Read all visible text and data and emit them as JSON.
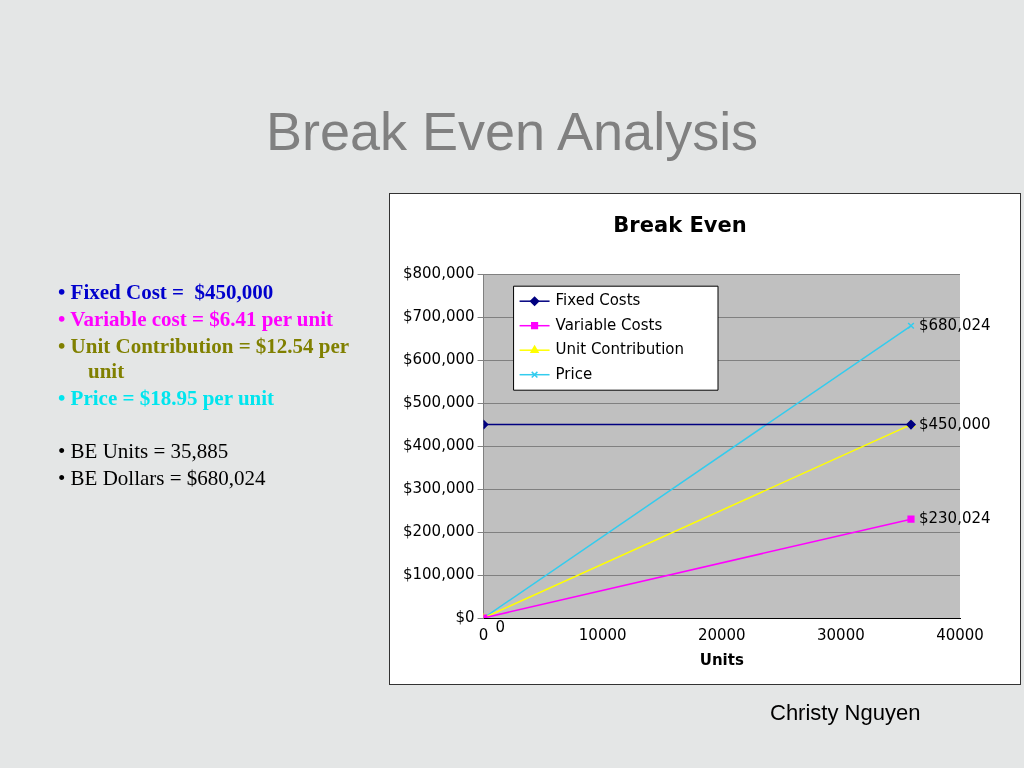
{
  "chart_data": {
    "type": "line",
    "title": "Break Even Analysis",
    "subtitle": "Break Even",
    "xlabel": "Units",
    "x": [
      0,
      35885
    ],
    "series": [
      {
        "name": "Fixed Costs",
        "color": "#000080",
        "marker": "diamond",
        "values": [
          450000,
          450000
        ]
      },
      {
        "name": "Variable Costs",
        "color": "#ff00ff",
        "marker": "square",
        "values": [
          0,
          230024
        ],
        "value_labels": [
          null,
          "$230,024"
        ]
      },
      {
        "name": "Unit Contribution",
        "color": "#ffff00",
        "marker": "triangle",
        "values": [
          0,
          450000
        ],
        "value_labels": [
          null,
          "$450,000"
        ]
      },
      {
        "name": "Price",
        "color": "#33ccee",
        "marker": "cross",
        "values": [
          0,
          680024
        ],
        "value_labels": [
          "0",
          "$680,024"
        ]
      }
    ],
    "xlim": [
      0,
      40000
    ],
    "xticks": [
      0,
      10000,
      20000,
      30000,
      40000
    ],
    "ylim": [
      0,
      800000
    ],
    "yticks": [
      {
        "value": 0,
        "label": "$0"
      },
      {
        "value": 100000,
        "label": "$100,000"
      },
      {
        "value": 200000,
        "label": "$200,000"
      },
      {
        "value": 300000,
        "label": "$300,000"
      },
      {
        "value": 400000,
        "label": "$400,000"
      },
      {
        "value": 500000,
        "label": "$500,000"
      },
      {
        "value": 600000,
        "label": "$600,000"
      },
      {
        "value": 700000,
        "label": "$700,000"
      },
      {
        "value": 800000,
        "label": "$800,000"
      }
    ],
    "grid": "y",
    "legend": "top left",
    "annotations": [
      "• Fixed Cost =  $450,000",
      "• Variable cost = $6.41 per unit",
      "• Unit Contribution = $12.54 per unit",
      "• Price = $18.95 per unit",
      "• BE Units = 35,885",
      "• BE Dollars = $680,024",
      "Christy Nguyen"
    ]
  }
}
